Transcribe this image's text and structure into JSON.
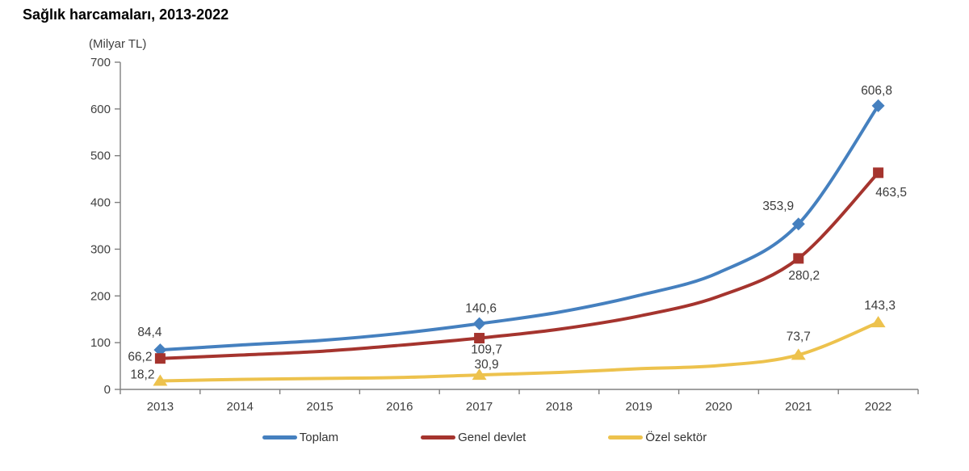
{
  "title": "Sağlık harcamaları, 2013-2022",
  "colors": {
    "toplam": "#4580BF",
    "genel_devlet": "#A5342E",
    "ozel_sektor": "#EDC24D",
    "axis": "#808080",
    "text": "#404040"
  },
  "chart_data": {
    "type": "line",
    "title": "Sağlık harcamaları, 2013-2022",
    "unit_label": "(Milyar TL)",
    "categories": [
      2013,
      2014,
      2015,
      2016,
      2017,
      2018,
      2019,
      2020,
      2021,
      2022
    ],
    "ylim": [
      0,
      700
    ],
    "ytick_step": 100,
    "grid": false,
    "line_style": "smooth",
    "legend_position": "bottom-center",
    "series": [
      {
        "name": "Toplam",
        "color": "#4580BF",
        "marker": "diamond",
        "values": [
          84.4,
          94.8,
          104.6,
          119.8,
          140.6,
          165.3,
          201.0,
          249.9,
          353.9,
          606.8
        ],
        "marker_years": [
          2013,
          2017,
          2021,
          2022
        ],
        "labels": [
          {
            "year": 2013,
            "text": "84,4",
            "dx": -13,
            "dy": -17
          },
          {
            "year": 2017,
            "text": "140,6",
            "dx": 2,
            "dy": -14
          },
          {
            "year": 2021,
            "text": "353,9",
            "dx": -25,
            "dy": -17
          },
          {
            "year": 2022,
            "text": "606,8",
            "dx": -2,
            "dy": -14
          }
        ]
      },
      {
        "name": "Genel devlet",
        "color": "#A5342E",
        "marker": "square",
        "values": [
          66.2,
          73.4,
          81.3,
          94.3,
          109.7,
          128.8,
          156.8,
          199.0,
          280.2,
          463.5
        ],
        "marker_years": [
          2013,
          2017,
          2021,
          2022
        ],
        "labels": [
          {
            "year": 2013,
            "text": "66,2",
            "dx": -25,
            "dy": 3
          },
          {
            "year": 2017,
            "text": "109,7",
            "dx": 9,
            "dy": 19
          },
          {
            "year": 2021,
            "text": "280,2",
            "dx": 7,
            "dy": 26
          },
          {
            "year": 2022,
            "text": "463,5",
            "dx": 16,
            "dy": 29
          }
        ]
      },
      {
        "name": "Özel sektör",
        "color": "#EDC24D",
        "marker": "triangle",
        "values": [
          18.2,
          21.4,
          23.4,
          25.5,
          30.9,
          36.4,
          44.2,
          50.9,
          73.7,
          143.3
        ],
        "marker_years": [
          2013,
          2017,
          2021,
          2022
        ],
        "labels": [
          {
            "year": 2013,
            "text": "18,2",
            "dx": -22,
            "dy": -3
          },
          {
            "year": 2017,
            "text": "30,9",
            "dx": 9,
            "dy": -8
          },
          {
            "year": 2021,
            "text": "73,7",
            "dx": 0,
            "dy": -18
          },
          {
            "year": 2022,
            "text": "143,3",
            "dx": 2,
            "dy": -16
          }
        ]
      }
    ]
  },
  "legend": {
    "items": [
      {
        "label": "Toplam",
        "color": "#4580BF"
      },
      {
        "label": "Genel devlet",
        "color": "#A5342E"
      },
      {
        "label": "Özel sektör",
        "color": "#EDC24D"
      }
    ]
  }
}
